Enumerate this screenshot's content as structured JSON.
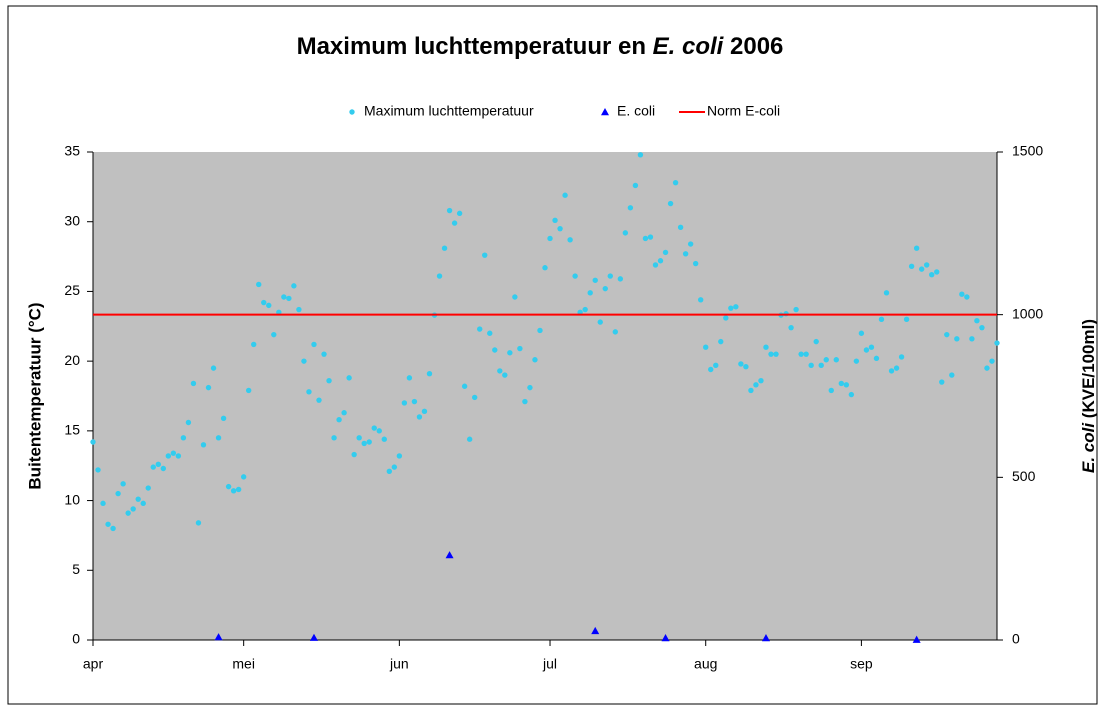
{
  "chart_data": {
    "type": "scatter",
    "title_parts": [
      {
        "text": "Maximum luchttemperatuur en "
      },
      {
        "text": "E. coli",
        "italic": true
      },
      {
        "text": " 2006"
      }
    ],
    "ylabel": "Buitentemperatuur (°C)",
    "y2label_parts": [
      {
        "text": "E. coli",
        "italic": true
      },
      {
        "text": " (KVE/100ml)"
      }
    ],
    "xlim": [
      0,
      180
    ],
    "xticks": [
      {
        "value": 0,
        "label": "apr"
      },
      {
        "value": 30,
        "label": "mei"
      },
      {
        "value": 61,
        "label": "jun"
      },
      {
        "value": 91,
        "label": "jul"
      },
      {
        "value": 122,
        "label": "aug"
      },
      {
        "value": 153,
        "label": "sep"
      }
    ],
    "ylim": [
      0,
      35
    ],
    "yticks": [
      0,
      5,
      10,
      15,
      20,
      25,
      30,
      35
    ],
    "y2lim": [
      0,
      1500
    ],
    "y2ticks": [
      0,
      500,
      1000,
      1500
    ],
    "grid": false,
    "background": "#c0c0c0",
    "legend": "top",
    "series": [
      {
        "name": "Maximum luchttemperatuur",
        "color": "#33ccee",
        "marker": "circle",
        "x": [
          0,
          1,
          2,
          3,
          4,
          5,
          6,
          7,
          8,
          9,
          10,
          11,
          12,
          13,
          14,
          15,
          16,
          17,
          18,
          19,
          20,
          21,
          22,
          23,
          24,
          25,
          26,
          27,
          28,
          29,
          30,
          31,
          32,
          33,
          34,
          35,
          36,
          37,
          38,
          39,
          40,
          41,
          42,
          43,
          44,
          45,
          46,
          47,
          48,
          49,
          50,
          51,
          52,
          53,
          54,
          55,
          56,
          57,
          58,
          59,
          60,
          61,
          62,
          63,
          64,
          65,
          66,
          67,
          68,
          69,
          70,
          71,
          72,
          73,
          74,
          75,
          76,
          77,
          78,
          79,
          80,
          81,
          82,
          83,
          84,
          85,
          86,
          87,
          88,
          89,
          90,
          91,
          92,
          93,
          94,
          95,
          96,
          97,
          98,
          99,
          100,
          101,
          102,
          103,
          104,
          105,
          106,
          107,
          108,
          109,
          110,
          111,
          112,
          113,
          114,
          115,
          116,
          117,
          118,
          119,
          120,
          121,
          122,
          123,
          124,
          125,
          126,
          127,
          128,
          129,
          130,
          131,
          132,
          133,
          134,
          135,
          136,
          137,
          138,
          139,
          140,
          141,
          142,
          143,
          144,
          145,
          146,
          147,
          148,
          149,
          150,
          151,
          152,
          153,
          154,
          155,
          156,
          157,
          158,
          159,
          160,
          161,
          162,
          163,
          164,
          165,
          166,
          167,
          168,
          169,
          170,
          171,
          172,
          173,
          174,
          175,
          176,
          177,
          178,
          179,
          180
        ],
        "values": [
          14.2,
          12.2,
          9.8,
          8.3,
          8.0,
          10.5,
          11.2,
          9.1,
          9.4,
          10.1,
          9.8,
          10.9,
          12.4,
          12.6,
          12.3,
          13.2,
          13.4,
          13.2,
          14.5,
          15.6,
          18.4,
          8.4,
          14.0,
          18.1,
          19.5,
          14.5,
          15.9,
          11.0,
          10.7,
          10.8,
          11.7,
          17.9,
          21.2,
          25.5,
          24.2,
          24.0,
          21.9,
          23.5,
          24.6,
          24.5,
          25.4,
          23.7,
          20.0,
          17.8,
          21.2,
          17.2,
          20.5,
          18.6,
          14.5,
          15.8,
          16.3,
          18.8,
          13.3,
          14.5,
          14.1,
          14.2,
          15.2,
          15.0,
          14.4,
          12.1,
          12.4,
          13.2,
          17.0,
          18.8,
          17.1,
          16.0,
          16.4,
          19.1,
          23.3,
          26.1,
          28.1,
          30.8,
          29.9,
          30.6,
          18.2,
          14.4,
          17.4,
          22.3,
          27.6,
          22.0,
          20.8,
          19.3,
          19.0,
          20.6,
          24.6,
          20.9,
          17.1,
          18.1,
          20.1,
          22.2,
          26.7,
          28.8,
          30.1,
          29.5,
          31.9,
          28.7,
          26.1,
          23.5,
          23.7,
          24.9,
          25.8,
          22.8,
          25.2,
          26.1,
          22.1,
          25.9,
          29.2,
          31.0,
          32.6,
          34.8,
          28.8,
          28.9,
          26.9,
          27.2,
          27.8,
          31.3,
          32.8,
          29.6,
          27.7,
          28.4,
          27.0,
          24.4,
          21.0,
          19.4,
          19.7,
          21.4,
          23.1,
          23.8,
          23.9,
          19.8,
          19.6,
          17.9,
          18.3,
          18.6,
          21.0,
          20.5,
          20.5,
          23.3,
          23.4,
          22.4,
          23.7,
          20.5,
          20.5,
          19.7,
          21.4,
          19.7,
          20.1,
          17.9,
          20.1,
          18.4,
          18.3,
          17.6,
          20.0,
          22.0,
          20.8,
          21.0,
          20.2,
          23.0,
          24.9,
          19.3,
          19.5,
          20.3,
          23.0,
          26.8,
          28.1,
          26.6,
          26.9,
          26.2,
          26.4,
          18.5,
          21.9,
          19.0,
          21.6,
          24.8,
          24.6,
          21.6,
          22.9,
          22.4,
          19.5,
          20.0,
          21.3
        ]
      },
      {
        "name": "E. coli",
        "color": "#0000ff",
        "marker": "triangle",
        "axis": "y2",
        "x": [
          25,
          44,
          71,
          100,
          114,
          134,
          164
        ],
        "values": [
          9,
          7,
          261,
          28,
          6,
          6,
          1
        ]
      },
      {
        "name": "Norm E-coli",
        "color": "#ff0000",
        "marker": "line",
        "axis": "y2",
        "x": [
          0,
          180
        ],
        "values": [
          1000,
          1000
        ]
      }
    ]
  }
}
